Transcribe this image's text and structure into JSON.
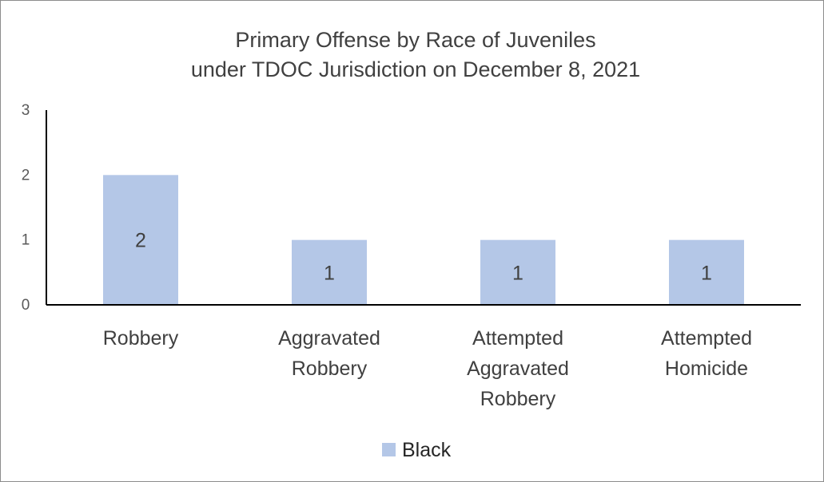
{
  "chart_data": {
    "type": "bar",
    "title": [
      "Primary Offense by Race of Juveniles",
      "under TDOC Jurisdiction on December 8, 2021"
    ],
    "categories": [
      [
        "Robbery"
      ],
      [
        "Aggravated",
        "Robbery"
      ],
      [
        "Attempted",
        "Aggravated",
        "Robbery"
      ],
      [
        "Attempted",
        "Homicide"
      ]
    ],
    "series": [
      {
        "name": "Black",
        "values": [
          2,
          1,
          1,
          1
        ],
        "color": "#b4c7e7"
      }
    ],
    "ylim": [
      0,
      3
    ],
    "yticks": [
      0,
      1,
      2,
      3
    ],
    "data_labels": true,
    "grid": false,
    "legend_position": "bottom"
  }
}
